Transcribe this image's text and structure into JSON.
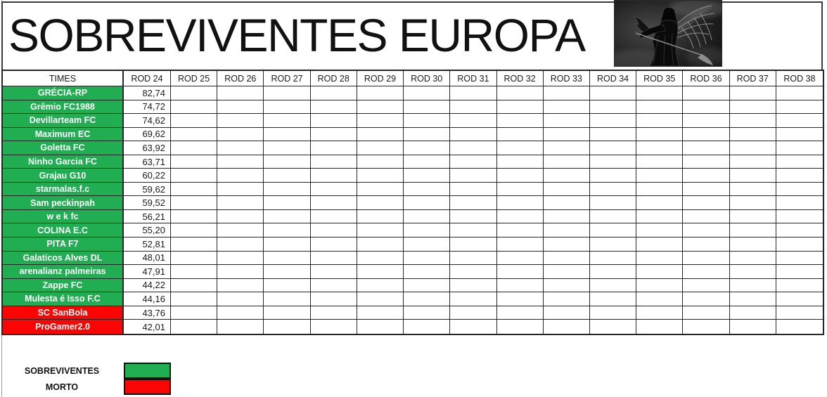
{
  "title": "SOBREVIVENTES EUROPA",
  "logo": "grim-reaper-image",
  "header": {
    "times": "TIMES",
    "rounds": [
      "ROD 24",
      "ROD 25",
      "ROD 26",
      "ROD 27",
      "ROD 28",
      "ROD 29",
      "ROD 30",
      "ROD 31",
      "ROD 32",
      "ROD 33",
      "ROD 34",
      "ROD 35",
      "ROD 36",
      "ROD 37",
      "ROD 38"
    ]
  },
  "rows": [
    {
      "team": "GRÉCIA-RP",
      "rod24": "82,74",
      "status": "alive"
    },
    {
      "team": "Grêmio FC1988",
      "rod24": "74,72",
      "status": "alive"
    },
    {
      "team": "Devillarteam FC",
      "rod24": "74,62",
      "status": "alive"
    },
    {
      "team": "Maximum EC",
      "rod24": "69,62",
      "status": "alive"
    },
    {
      "team": "Goletta FC",
      "rod24": "63,92",
      "status": "alive"
    },
    {
      "team": "Ninho Garcia FC",
      "rod24": "63,71",
      "status": "alive"
    },
    {
      "team": "Grajau G10",
      "rod24": "60,22",
      "status": "alive"
    },
    {
      "team": "starmalas.f.c",
      "rod24": "59,62",
      "status": "alive"
    },
    {
      "team": "Sam peckinpah",
      "rod24": "59,52",
      "status": "alive"
    },
    {
      "team": "w e k fc",
      "rod24": "56,21",
      "status": "alive"
    },
    {
      "team": "COLINA E.C",
      "rod24": "55,20",
      "status": "alive"
    },
    {
      "team": "PITA F7",
      "rod24": "52,81",
      "status": "alive"
    },
    {
      "team": "Galaticos Alves DL",
      "rod24": "48,01",
      "status": "alive"
    },
    {
      "team": "arenalianz palmeiras",
      "rod24": "47,91",
      "status": "alive"
    },
    {
      "team": "Zappe FC",
      "rod24": "44,22",
      "status": "alive"
    },
    {
      "team": "Mulesta é Isso F.C",
      "rod24": "44,16",
      "status": "alive"
    },
    {
      "team": "SC SanBola",
      "rod24": "43,76",
      "status": "dead"
    },
    {
      "team": "ProGamer2.0",
      "rod24": "42,01",
      "status": "dead"
    }
  ],
  "legend": {
    "alive_label": "SOBREVIVENTES",
    "dead_label": "MORTO"
  },
  "colors": {
    "alive": "#21AE52",
    "dead": "#FB0404",
    "grid_border": "#262626"
  }
}
